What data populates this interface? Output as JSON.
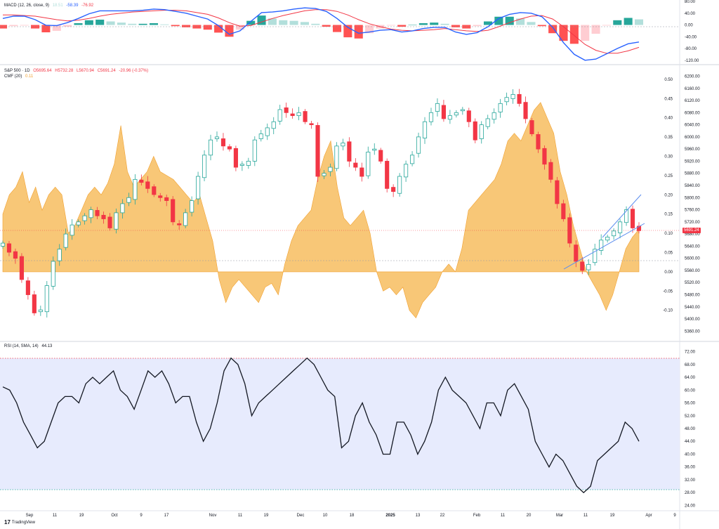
{
  "legend": {
    "macd": {
      "title": "MACD (12, 26, close, 9)",
      "hist": "18.51",
      "macd": "-58.39",
      "signal": "-76.92"
    },
    "price": {
      "title": "S&P 500 · 1D",
      "o": "O5695.64",
      "h": "H5732.28",
      "l": "L5670.94",
      "c": "C5691.24",
      "chg": "-20.96 (-0.37%)"
    },
    "cmf": {
      "title": "CMF (20)",
      "value": "0.11"
    },
    "rsi": {
      "title": "RSI (14, SMA, 14)",
      "value": "44.13"
    }
  },
  "last_price_label": "5691.24",
  "branding": {
    "logo_text": "TradingView"
  },
  "colors": {
    "up": "#26a69a",
    "down": "#f23645",
    "cmf_fill": "#f6b44a",
    "macd_line": "#2962ff",
    "signal_line": "#f23645",
    "rsi_line": "#131722",
    "rsi_band": "#e7ebfd"
  },
  "chart_data": [
    {
      "type": "bar",
      "name": "MACD",
      "title": "MACD (12, 26, close, 9)",
      "yticks": [
        "80.00",
        "40.00",
        "0.00",
        "-40.00",
        "-80.00",
        "-120.00"
      ],
      "ylim": [
        -130,
        80
      ],
      "macd_line": [
        22,
        30,
        30,
        18,
        -1,
        -2,
        8,
        22,
        38,
        48,
        48,
        48,
        48,
        50,
        54,
        52,
        46,
        40,
        30,
        20,
        -2,
        -32,
        -20,
        12,
        42,
        44,
        48,
        54,
        58,
        56,
        46,
        22,
        -8,
        -28,
        -24,
        -18,
        -16,
        -24,
        -20,
        -12,
        -8,
        -8,
        -24,
        -32,
        -26,
        -6,
        22,
        36,
        42,
        40,
        28,
        -8,
        -60,
        -100,
        -120,
        -116,
        -98,
        -80,
        -64,
        -58
      ],
      "signal_line": [
        34,
        34,
        32,
        30,
        24,
        18,
        14,
        16,
        22,
        30,
        36,
        40,
        44,
        46,
        48,
        50,
        50,
        48,
        42,
        36,
        24,
        8,
        -4,
        -2,
        10,
        22,
        32,
        40,
        48,
        52,
        52,
        46,
        34,
        18,
        4,
        -6,
        -14,
        -18,
        -20,
        -18,
        -16,
        -12,
        -16,
        -20,
        -22,
        -18,
        -6,
        8,
        20,
        30,
        32,
        20,
        -6,
        -36,
        -66,
        -86,
        -96,
        -96,
        -88,
        -76
      ],
      "histogram": [
        -12,
        -4,
        -2,
        -12,
        -25,
        -20,
        -6,
        6,
        16,
        18,
        12,
        8,
        4,
        4,
        6,
        2,
        -4,
        -8,
        -12,
        -16,
        -26,
        -40,
        -16,
        14,
        32,
        22,
        16,
        14,
        10,
        4,
        -6,
        -24,
        -42,
        -46,
        -28,
        -12,
        -2,
        -6,
        0,
        6,
        8,
        4,
        -8,
        -12,
        -4,
        12,
        28,
        28,
        22,
        10,
        -4,
        -28,
        -54,
        -64,
        -54,
        -30,
        -2,
        16,
        24,
        19
      ]
    },
    {
      "type": "candlestick",
      "name": "S&P 500 · 1D",
      "yticks": [
        "6200.00",
        "6160.00",
        "6120.00",
        "6080.00",
        "6040.00",
        "6000.00",
        "5960.00",
        "5920.00",
        "5880.00",
        "5840.00",
        "5800.00",
        "5760.00",
        "5720.00",
        "5680.00",
        "5640.00",
        "5600.00",
        "5560.00",
        "5520.00",
        "5480.00",
        "5440.00",
        "5400.00",
        "5360.00"
      ],
      "ylim": [
        5340,
        6215
      ],
      "xticks": [
        "Sep",
        "11",
        "19",
        "Oct",
        "9",
        "17",
        "Nov",
        "11",
        "19",
        "Dec",
        "10",
        "18",
        "2025",
        "13",
        "22",
        "Feb",
        "11",
        "20",
        "Mar",
        "11",
        "19",
        "Apr",
        "9"
      ],
      "closes": [
        5650,
        5620,
        5600,
        5530,
        5480,
        5420,
        5430,
        5510,
        5590,
        5630,
        5680,
        5710,
        5720,
        5740,
        5760,
        5740,
        5730,
        5700,
        5750,
        5780,
        5800,
        5860,
        5850,
        5830,
        5810,
        5800,
        5790,
        5720,
        5710,
        5750,
        5790,
        5870,
        5940,
        5990,
        6000,
        5970,
        5960,
        5900,
        5910,
        5920,
        5990,
        6010,
        6030,
        6050,
        6090,
        6080,
        6070,
        6080,
        6050,
        6040,
        5870,
        5880,
        5900,
        5970,
        5980,
        5920,
        5900,
        5870,
        5950,
        5960,
        5920,
        5830,
        5820,
        5870,
        5910,
        5940,
        6000,
        6050,
        6080,
        6110,
        6060,
        6070,
        6080,
        6090,
        6050,
        5990,
        6040,
        6060,
        6080,
        6110,
        6130,
        6140,
        6110,
        6060,
        6010,
        5960,
        5910,
        5860,
        5780,
        5730,
        5650,
        5590,
        5560,
        5580,
        5630,
        5660,
        5670,
        5690,
        5720,
        5760,
        5700,
        5691
      ]
    },
    {
      "type": "area",
      "name": "CMF (20)",
      "yticks": [
        "0.50",
        "0.45",
        "0.40",
        "0.35",
        "0.30",
        "0.25",
        "0.20",
        "0.15",
        "0.10",
        "0.05",
        "0.00",
        "-0.05",
        "-0.10"
      ],
      "ylim": [
        -0.17,
        0.52
      ],
      "values": [
        0.15,
        0.2,
        0.22,
        0.26,
        0.18,
        0.22,
        0.16,
        0.2,
        0.22,
        0.2,
        0.1,
        0.12,
        0.16,
        0.2,
        0.22,
        0.2,
        0.23,
        0.28,
        0.38,
        0.26,
        0.22,
        0.24,
        0.26,
        0.3,
        0.26,
        0.25,
        0.24,
        0.22,
        0.2,
        0.18,
        0.2,
        0.14,
        0.08,
        -0.02,
        -0.08,
        -0.04,
        -0.02,
        -0.04,
        -0.06,
        -0.08,
        -0.04,
        -0.03,
        -0.06,
        0.02,
        0.08,
        0.12,
        0.14,
        0.16,
        0.24,
        0.3,
        0.34,
        0.22,
        0.14,
        0.12,
        0.14,
        0.16,
        0.1,
        0.0,
        -0.05,
        -0.04,
        -0.06,
        -0.04,
        -0.1,
        -0.12,
        -0.08,
        -0.06,
        -0.04,
        0.0,
        0.02,
        0.0,
        0.06,
        0.16,
        0.18,
        0.2,
        0.22,
        0.24,
        0.28,
        0.34,
        0.36,
        0.34,
        0.38,
        0.42,
        0.44,
        0.4,
        0.36,
        0.26,
        0.2,
        0.12,
        0.06,
        0.0,
        -0.03,
        -0.06,
        -0.1,
        -0.06,
        0.0,
        0.06,
        0.09,
        0.11
      ]
    },
    {
      "type": "line",
      "name": "RSI (14, SMA, 14)",
      "yticks": [
        "72.00",
        "68.00",
        "64.00",
        "60.00",
        "56.00",
        "52.00",
        "48.00",
        "44.00",
        "40.00",
        "36.00",
        "32.00",
        "28.00",
        "24.00"
      ],
      "ylim": [
        23,
        73
      ],
      "band": [
        30,
        70
      ],
      "values": [
        61,
        60,
        56,
        50,
        46,
        42,
        44,
        50,
        56,
        58,
        58,
        56,
        62,
        64,
        62,
        64,
        66,
        60,
        58,
        54,
        60,
        66,
        64,
        66,
        62,
        56,
        58,
        58,
        50,
        44,
        48,
        56,
        66,
        70,
        68,
        62,
        52,
        56,
        58,
        60,
        62,
        64,
        66,
        68,
        70,
        68,
        64,
        60,
        58,
        42,
        44,
        52,
        56,
        50,
        46,
        40,
        40,
        50,
        50,
        46,
        40,
        44,
        50,
        60,
        64,
        60,
        58,
        56,
        52,
        48,
        56,
        56,
        52,
        60,
        62,
        58,
        54,
        44,
        40,
        36,
        40,
        38,
        34,
        30,
        28,
        30,
        38,
        40,
        42,
        44,
        50,
        48,
        44
      ]
    }
  ]
}
